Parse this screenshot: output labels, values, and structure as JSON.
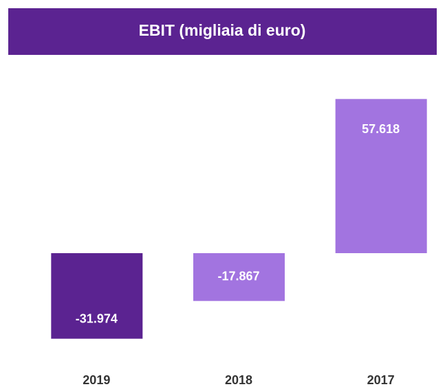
{
  "chart_data": {
    "type": "bar",
    "title": "EBIT (migliaia di euro)",
    "categories": [
      "2019",
      "2018",
      "2017"
    ],
    "values": [
      -31974,
      -17867,
      57618
    ],
    "value_labels": [
      "-31.974",
      "-17.867",
      "57.618"
    ],
    "colors": [
      "#5b2391",
      "#a274e0",
      "#a274e0"
    ],
    "ylim": [
      -40000,
      60000
    ]
  }
}
